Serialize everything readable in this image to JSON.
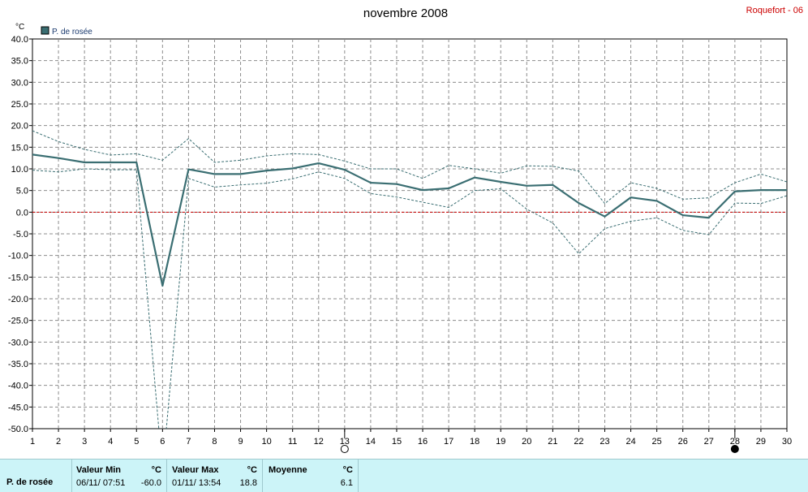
{
  "header": {
    "title": "novembre 2008",
    "station": "Roquefort - 06"
  },
  "chart_data": {
    "type": "line",
    "title": "novembre 2008",
    "ylabel": "°C",
    "ylim": [
      -50,
      40
    ],
    "yticks": [
      "40.0",
      "35.0",
      "30.0",
      "25.0",
      "20.0",
      "15.0",
      "10.0",
      "5.0",
      "0.0",
      "-5.0",
      "-10.0",
      "-15.0",
      "-20.0",
      "-25.0",
      "-30.0",
      "-35.0",
      "-40.0",
      "-45.0",
      "-50.0"
    ],
    "x": [
      1,
      2,
      3,
      4,
      5,
      6,
      7,
      8,
      9,
      10,
      11,
      12,
      13,
      14,
      15,
      16,
      17,
      18,
      19,
      20,
      21,
      22,
      23,
      24,
      25,
      26,
      27,
      28,
      29,
      30
    ],
    "grid": true,
    "legend": "top-left",
    "series": [
      {
        "name": "P. de rosée",
        "color": "#3a6e72",
        "values": [
          13.3,
          12.5,
          11.5,
          11.5,
          11.5,
          -17.0,
          9.9,
          8.8,
          8.8,
          9.6,
          10.1,
          11.3,
          9.8,
          6.8,
          6.5,
          5.1,
          5.5,
          8.0,
          7.0,
          6.1,
          6.3,
          2.1,
          -1.0,
          3.4,
          2.6,
          -0.7,
          -1.3,
          4.8,
          5.1,
          5.1
        ]
      },
      {
        "name": "",
        "color": "#3a6e72",
        "dashed": true,
        "values": [
          18.8,
          16.3,
          14.5,
          13.2,
          13.5,
          12.0,
          17.0,
          11.5,
          12.0,
          13.0,
          13.5,
          13.3,
          11.8,
          10.0,
          10.0,
          7.8,
          10.8,
          10.0,
          9.0,
          10.7,
          10.6,
          9.5,
          2.0,
          6.8,
          5.5,
          3.0,
          3.3,
          6.8,
          8.8,
          7.0
        ]
      },
      {
        "name": "",
        "color": "#3a6e72",
        "dashed": true,
        "values": [
          9.7,
          9.3,
          10.0,
          9.8,
          9.8,
          -60.0,
          7.8,
          5.8,
          6.3,
          6.7,
          7.7,
          9.3,
          7.8,
          4.3,
          3.5,
          2.3,
          1.1,
          5.0,
          5.4,
          0.7,
          -2.5,
          -9.6,
          -3.8,
          -2.1,
          -1.3,
          -4.2,
          -5.2,
          2.1,
          2.0,
          3.8
        ]
      }
    ],
    "zero_line_color": "#cc0000",
    "moon_phases": [
      {
        "day": 13,
        "phase": "full"
      },
      {
        "day": 28,
        "phase": "new"
      }
    ]
  },
  "stats": {
    "series_label": "P. de rosée",
    "min": {
      "label": "Valeur Min",
      "unit": "°C",
      "date": "06/11/  07:51",
      "value": "-60.0"
    },
    "max": {
      "label": "Valeur Max",
      "unit": "°C",
      "date": "01/11/  13:54",
      "value": "18.8"
    },
    "avg": {
      "label": "Moyenne",
      "unit": "°C",
      "value": "6.1"
    }
  }
}
